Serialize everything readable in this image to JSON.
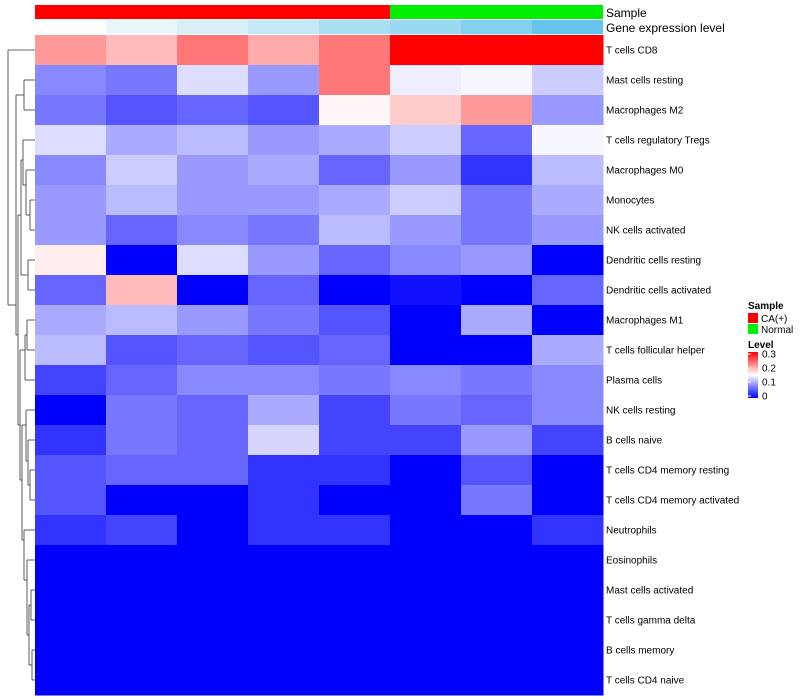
{
  "chart_data": {
    "type": "heatmap",
    "title": "",
    "columns": 8,
    "annotation_tracks": {
      "sample": {
        "label": "Sample",
        "values": [
          "CA(+)",
          "CA(+)",
          "CA(+)",
          "CA(+)",
          "CA(+)",
          "Normal",
          "Normal",
          "Normal"
        ]
      },
      "gene_expression": {
        "label": "Gene expression level",
        "colors": [
          "#ffffff",
          "#eaf5fa",
          "#d9f0f8",
          "#c3e8f6",
          "#a9dff2",
          "#9bd8f1",
          "#84d0ef",
          "#66c3ec"
        ]
      }
    },
    "rows": [
      "T cells CD8",
      "Mast cells resting",
      "Macrophages M2",
      "T cells regulatory  Tregs",
      "Macrophages M0",
      "Monocytes",
      "NK cells activated",
      "Dendritic cells resting",
      "Dendritic cells activated",
      "Macrophages M1",
      "T cells follicular helper",
      "Plasma cells",
      "NK cells resting",
      "B cells naive",
      "T cells CD4 memory resting",
      "T cells CD4 memory activated",
      "Neutrophils",
      "Eosinophils",
      "Mast cells activated",
      "T cells gamma delta",
      "B cells memory",
      "T cells CD4 naive"
    ],
    "values": [
      [
        0.21,
        0.19,
        0.23,
        0.2,
        0.23,
        0.3,
        0.3,
        0.3
      ],
      [
        0.08,
        0.07,
        0.13,
        0.09,
        0.23,
        0.14,
        0.145,
        0.12
      ],
      [
        0.07,
        0.05,
        0.06,
        0.05,
        0.155,
        0.18,
        0.21,
        0.09
      ],
      [
        0.13,
        0.1,
        0.11,
        0.09,
        0.1,
        0.12,
        0.06,
        0.145
      ],
      [
        0.08,
        0.12,
        0.09,
        0.1,
        0.06,
        0.09,
        0.03,
        0.11
      ],
      [
        0.09,
        0.11,
        0.09,
        0.09,
        0.1,
        0.12,
        0.07,
        0.1
      ],
      [
        0.09,
        0.06,
        0.08,
        0.07,
        0.11,
        0.09,
        0.07,
        0.09
      ],
      [
        0.16,
        0.0,
        0.13,
        0.09,
        0.06,
        0.08,
        0.09,
        0.0
      ],
      [
        0.06,
        0.19,
        0.0,
        0.06,
        0.0,
        0.01,
        0.0,
        0.06
      ],
      [
        0.1,
        0.11,
        0.09,
        0.07,
        0.05,
        0.0,
        0.1,
        0.0
      ],
      [
        0.11,
        0.05,
        0.06,
        0.05,
        0.06,
        0.0,
        0.0,
        0.1
      ],
      [
        0.04,
        0.06,
        0.08,
        0.08,
        0.07,
        0.08,
        0.07,
        0.08
      ],
      [
        0.0,
        0.07,
        0.06,
        0.1,
        0.04,
        0.07,
        0.06,
        0.08
      ],
      [
        0.03,
        0.07,
        0.06,
        0.125,
        0.04,
        0.04,
        0.09,
        0.04
      ],
      [
        0.05,
        0.06,
        0.06,
        0.03,
        0.03,
        0.0,
        0.05,
        0.0
      ],
      [
        0.05,
        0.0,
        0.0,
        0.03,
        0.0,
        0.0,
        0.07,
        0.0
      ],
      [
        0.03,
        0.04,
        0.0,
        0.03,
        0.03,
        0.0,
        0.0,
        0.03
      ],
      [
        0.0,
        0.0,
        0.0,
        0.0,
        0.0,
        0.0,
        0.0,
        0.0
      ],
      [
        0.0,
        0.0,
        0.0,
        0.0,
        0.0,
        0.0,
        0.0,
        0.0
      ],
      [
        0.0,
        0.0,
        0.0,
        0.0,
        0.0,
        0.0,
        0.0,
        0.0
      ],
      [
        0.0,
        0.0,
        0.0,
        0.0,
        0.0,
        0.0,
        0.0,
        0.0
      ],
      [
        0.0,
        0.0,
        0.0,
        0.0,
        0.0,
        0.0,
        0.0,
        0.0
      ]
    ],
    "color_scale": {
      "low": "#0000ff",
      "mid": "#ffffff",
      "high": "#ff0000",
      "range": [
        0,
        0.3
      ],
      "mid_value": 0.15
    },
    "legend": {
      "sample": {
        "title": "Sample",
        "items": [
          {
            "label": "CA(+)",
            "color": "#ff0000"
          },
          {
            "label": "Normal",
            "color": "#00ee00"
          }
        ]
      },
      "level": {
        "title": "Level",
        "ticks": [
          "0.3",
          "0.2",
          "0.1",
          "0"
        ]
      },
      "placement": "right"
    }
  }
}
